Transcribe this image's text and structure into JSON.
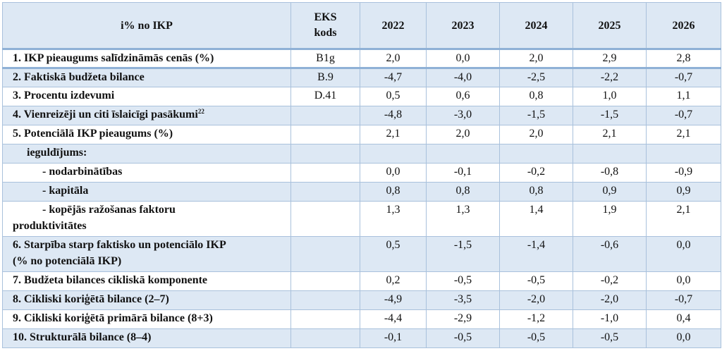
{
  "table": {
    "headers": [
      "i% no IKP",
      "EKS kods",
      "2022",
      "2023",
      "2024",
      "2025",
      "2026"
    ],
    "rows": [
      {
        "label": "1. IKP pieaugums salīdzināmās cenās (%)",
        "code": "B1g",
        "values": [
          "2,0",
          "0,0",
          "2,0",
          "2,9",
          "2,8"
        ]
      },
      {
        "label": "2. Faktiskā budžeta bilance",
        "code": "B.9",
        "values": [
          "-4,7",
          "-4,0",
          "-2,5",
          "-2,2",
          "-0,7"
        ]
      },
      {
        "label": "3. Procentu izdevumi",
        "code": "D.41",
        "values": [
          "0,5",
          "0,6",
          "0,8",
          "1,0",
          "1,1"
        ]
      },
      {
        "label": "4. Vienreizēji un citi īslaicīgi pasākumi",
        "label_sup": "22",
        "code": "",
        "values": [
          "-4,8",
          "-3,0",
          "-1,5",
          "-1,5",
          "-0,7"
        ]
      },
      {
        "label": "5. Potenciālā IKP pieaugums (%)",
        "code": "",
        "values": [
          "2,1",
          "2,0",
          "2,0",
          "2,1",
          "2,1"
        ]
      },
      {
        "label": "ieguldījums:",
        "code": "",
        "values": [
          "",
          "",
          "",
          "",
          ""
        ]
      },
      {
        "label": "- nodarbinātības",
        "code": "",
        "values": [
          "0,0",
          "-0,1",
          "-0,2",
          "-0,8",
          "-0,9"
        ]
      },
      {
        "label": "- kapitāla",
        "code": "",
        "values": [
          "0,8",
          "0,8",
          "0,8",
          "0,9",
          "0,9"
        ]
      },
      {
        "label": "- kopējās ražošanas faktoru",
        "label_cont": "produktivitātes",
        "code": "",
        "values": [
          "1,3",
          "1,3",
          "1,4",
          "1,9",
          "2,1"
        ]
      },
      {
        "label": "6. Starpība starp faktisko un potenciālo IKP",
        "label_cont": "(% no potenciālā IKP)",
        "code": "",
        "values": [
          "0,5",
          "-1,5",
          "-1,4",
          "-0,6",
          "0,0"
        ]
      },
      {
        "label": "7. Budžeta bilances cikliskā komponente",
        "code": "",
        "values": [
          "0,2",
          "-0,5",
          "-0,5",
          "-0,2",
          "0,0"
        ]
      },
      {
        "label": "8. Cikliski koriģētā bilance (2–7)",
        "code": "",
        "values": [
          "-4,9",
          "-3,5",
          "-2,0",
          "-2,0",
          "-0,7"
        ]
      },
      {
        "label": "9. Cikliski koriģētā primārā bilance (8+3)",
        "code": "",
        "values": [
          "-4,4",
          "-2,9",
          "-1,2",
          "-1,0",
          "0,4"
        ]
      },
      {
        "label": "10. Strukturālā bilance (8–4)",
        "code": "",
        "values": [
          "-0,1",
          "-0,5",
          "-0,5",
          "-0,5",
          "0,0"
        ]
      }
    ]
  }
}
